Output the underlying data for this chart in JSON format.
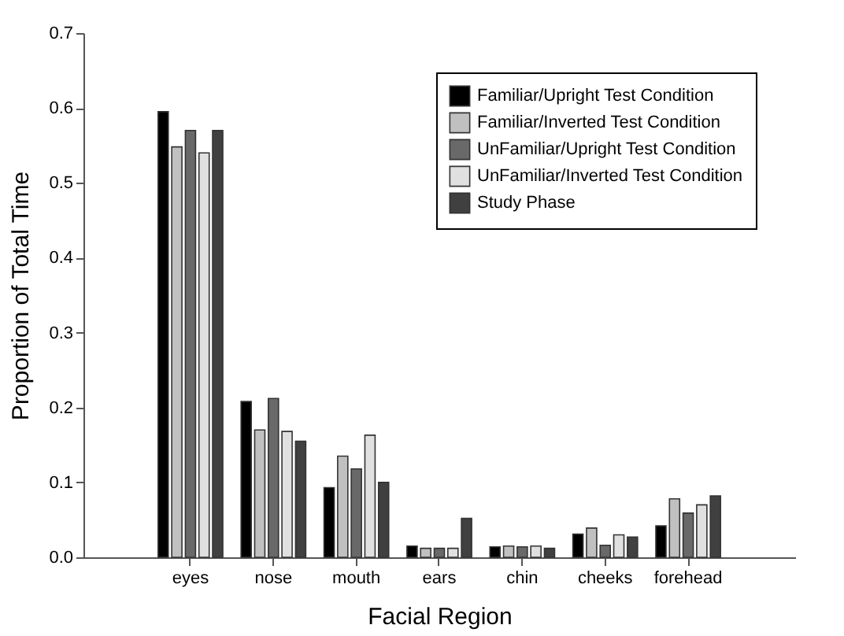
{
  "chart_data": {
    "type": "bar",
    "xlabel": "Facial Region",
    "ylabel": "Proportion of Total Time",
    "categories": [
      "eyes",
      "nose",
      "mouth",
      "ears",
      "chin",
      "cheeks",
      "forehead"
    ],
    "series": [
      {
        "name": "Familiar/Upright Test Condition",
        "color": "#000000",
        "values": [
          0.595,
          0.208,
          0.093,
          0.015,
          0.014,
          0.031,
          0.042
        ]
      },
      {
        "name": "Familiar/Inverted Test Condition",
        "color": "#c0c0c0",
        "values": [
          0.548,
          0.17,
          0.135,
          0.012,
          0.015,
          0.039,
          0.078
        ]
      },
      {
        "name": "UnFamiliar/Upright Test Condition",
        "color": "#696969",
        "values": [
          0.57,
          0.212,
          0.118,
          0.012,
          0.014,
          0.016,
          0.059
        ]
      },
      {
        "name": "UnFamiliar/Inverted Test Condition",
        "color": "#e0e0e0",
        "values": [
          0.54,
          0.168,
          0.163,
          0.012,
          0.015,
          0.03,
          0.07
        ]
      },
      {
        "name": "Study Phase",
        "color": "#404040",
        "values": [
          0.57,
          0.155,
          0.1,
          0.052,
          0.012,
          0.027,
          0.082
        ]
      }
    ],
    "ylim": [
      0,
      0.7
    ],
    "yticks": [
      {
        "value": 0,
        "label": "0.0"
      },
      0.1,
      0.2,
      0.3,
      0.4,
      0.5,
      0.6,
      0.7
    ],
    "grid": false,
    "legend": "top right"
  }
}
